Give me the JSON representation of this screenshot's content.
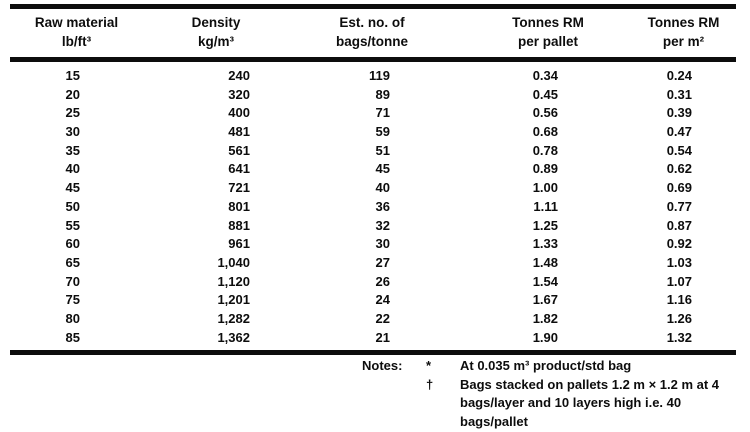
{
  "table": {
    "columns": [
      {
        "line1": "Raw material",
        "line2": "lb/ft³"
      },
      {
        "line1": "Density",
        "line2": "kg/m³"
      },
      {
        "line1": "Est. no. of",
        "line2": "bags/tonne"
      },
      {
        "line1": "Tonnes RM",
        "line2": "per pallet"
      },
      {
        "line1": "Tonnes RM",
        "line2": "per m²"
      }
    ],
    "rows": [
      [
        "15",
        "240",
        "119",
        "0.34",
        "0.24"
      ],
      [
        "20",
        "320",
        "89",
        "0.45",
        "0.31"
      ],
      [
        "25",
        "400",
        "71",
        "0.56",
        "0.39"
      ],
      [
        "30",
        "481",
        "59",
        "0.68",
        "0.47"
      ],
      [
        "35",
        "561",
        "51",
        "0.78",
        "0.54"
      ],
      [
        "40",
        "641",
        "45",
        "0.89",
        "0.62"
      ],
      [
        "45",
        "721",
        "40",
        "1.00",
        "0.69"
      ],
      [
        "50",
        "801",
        "36",
        "1.11",
        "0.77"
      ],
      [
        "55",
        "881",
        "32",
        "1.25",
        "0.87"
      ],
      [
        "60",
        "961",
        "30",
        "1.33",
        "0.92"
      ],
      [
        "65",
        "1,040",
        "27",
        "1.48",
        "1.03"
      ],
      [
        "70",
        "1,120",
        "26",
        "1.54",
        "1.07"
      ],
      [
        "75",
        "1,201",
        "24",
        "1.67",
        "1.16"
      ],
      [
        "80",
        "1,282",
        "22",
        "1.82",
        "1.26"
      ],
      [
        "85",
        "1,362",
        "21",
        "1.90",
        "1.32"
      ]
    ]
  },
  "notes": {
    "label": "Notes:",
    "items": [
      {
        "marker": "*",
        "text": "At 0.035 m³ product/std bag"
      },
      {
        "marker": "†",
        "text": "Bags stacked on pallets 1.2 m × 1.2 m at 4 bags/layer and 10 layers high i.e. 40 bags/pallet"
      }
    ]
  },
  "colors": {
    "background": "#ffffff",
    "text": "#0d0d0d",
    "rule": "#0d0d0d"
  }
}
